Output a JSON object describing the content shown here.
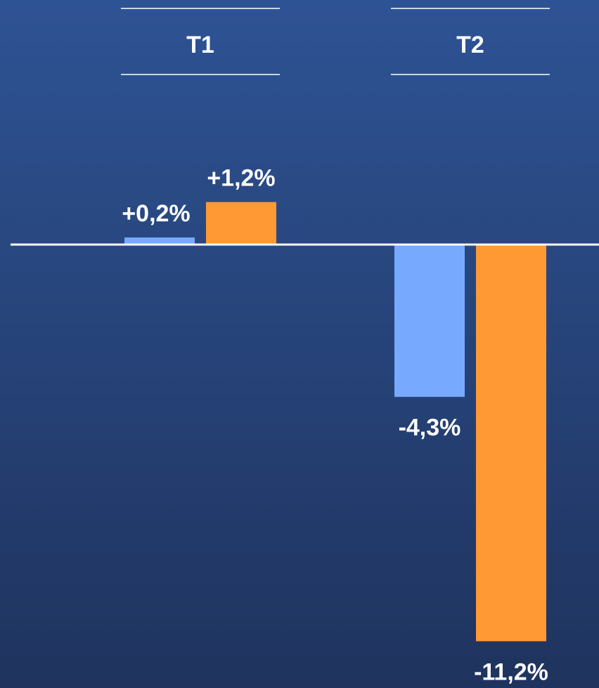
{
  "chart_data": {
    "type": "bar",
    "categories": [
      "T1",
      "T2"
    ],
    "series": [
      {
        "color": "#77aaff",
        "values": [
          0.2,
          -4.3
        ],
        "value_labels": [
          "+0,2%",
          "-4,3%"
        ]
      },
      {
        "color": "#ff9933",
        "values": [
          1.2,
          -11.2
        ],
        "value_labels": [
          "+1,2%",
          "-11,2%"
        ]
      }
    ]
  }
}
